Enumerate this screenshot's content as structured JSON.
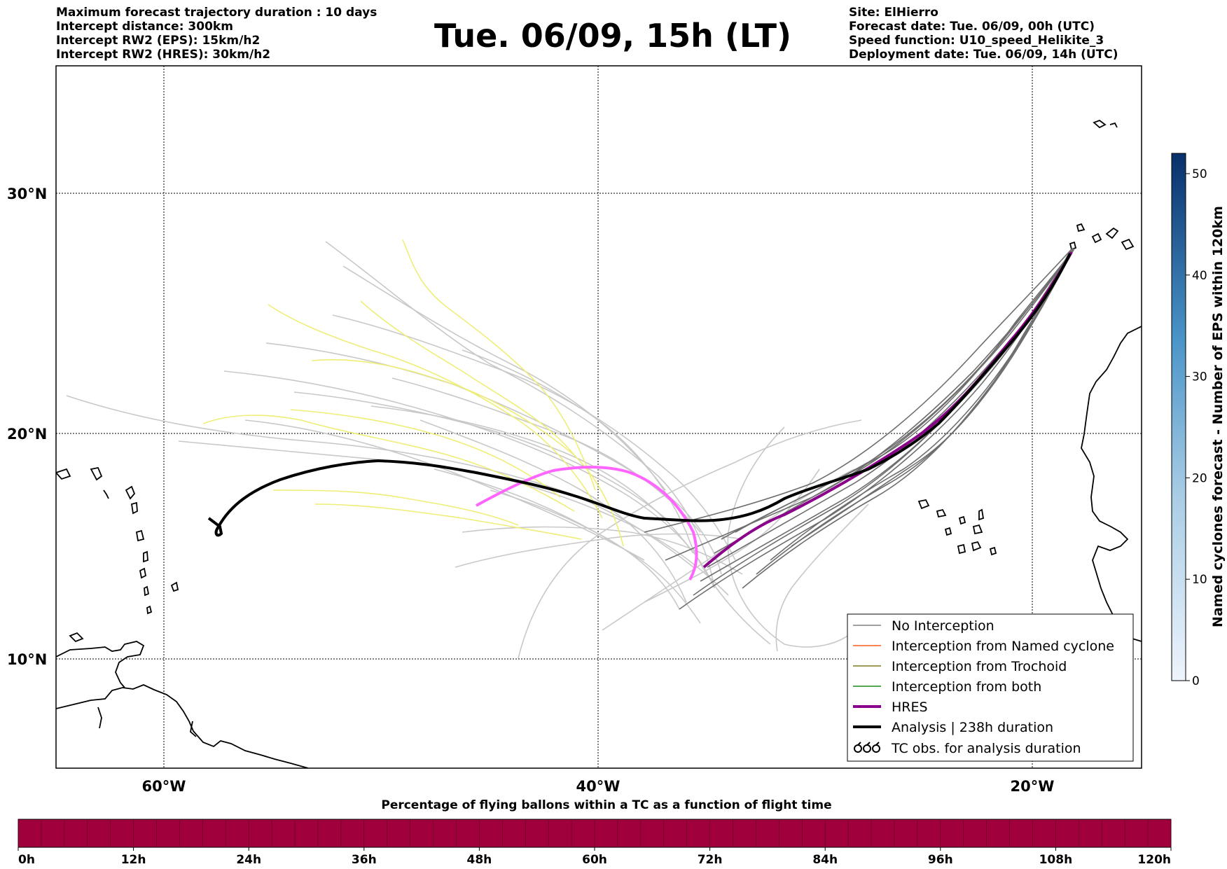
{
  "header": {
    "title": "Tue. 06/09, 15h (LT)",
    "left": [
      "Maximum forecast trajectory duration : 10 days",
      "Intercept distance: 300km",
      "Intercept RW2 (EPS):  15km/h2",
      "Intercept RW2 (HRES): 30km/h2"
    ],
    "right": [
      "Site: ElHierro",
      "Forecast date: Tue. 06/09, 00h (UTC)",
      "Speed function: U10_speed_Helikite_3",
      "Deployment date: Tue. 06/09, 14h (UTC)"
    ]
  },
  "map": {
    "lon_ticks": [
      "60°W",
      "40°W",
      "20°W"
    ],
    "lat_ticks": [
      "30°N",
      "20°N",
      "10°N"
    ],
    "extent": {
      "lon": [
        -65,
        -15
      ],
      "lat": [
        5.7,
        35
      ]
    }
  },
  "legend": {
    "items": [
      {
        "label": "No Interception",
        "color": "#808080"
      },
      {
        "label": "Interception from Named cyclone",
        "color": "#ff5a1a"
      },
      {
        "label": "Interception from Trochoid",
        "color": "#7a7a1a"
      },
      {
        "label": "Interception from both",
        "color": "#1a8a1a"
      },
      {
        "label": "HRES",
        "color": "#8b008b"
      },
      {
        "label": "Analysis | 238h duration",
        "color": "#000000"
      },
      {
        "label": "TC obs. for analysis duration",
        "color": "#000000"
      }
    ]
  },
  "colorbar_right": {
    "label": "Named cyclones forecast - Number of EPS within 120km",
    "ticks": [
      "0",
      "10",
      "20",
      "30",
      "40",
      "50"
    ],
    "max": 52
  },
  "colorbar_bottom": {
    "title": "Percentage of flying ballons within a TC as a function of flight time",
    "ticks": [
      "0h",
      "12h",
      "24h",
      "36h",
      "48h",
      "60h",
      "72h",
      "84h",
      "96h",
      "108h",
      "120h"
    ],
    "fill_color": "#a0003c"
  },
  "colors": {
    "no_interception_light": "#c8c8c8",
    "no_interception_dark": "#6e6e6e",
    "yellow_tracks": "#eeee77",
    "hres_pink": "#ff66ff",
    "hres_purple": "#8b008b",
    "analysis": "#000000"
  }
}
